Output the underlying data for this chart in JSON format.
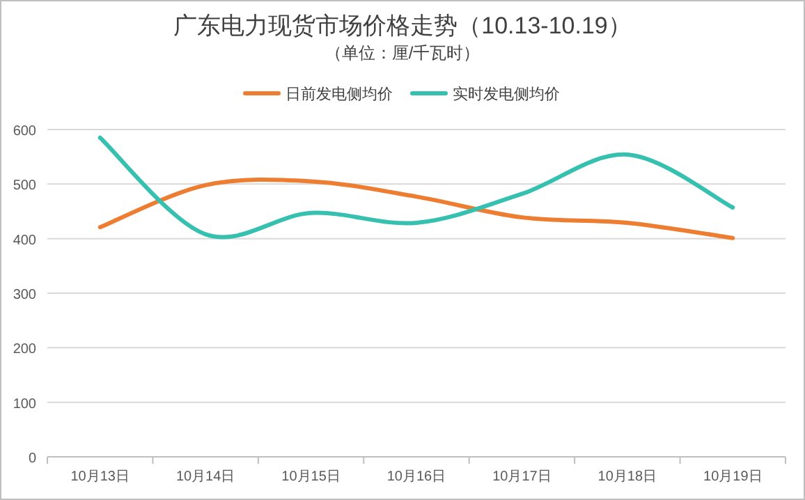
{
  "chart_data": {
    "type": "line",
    "title": "广东电力现货市场价格走势（10.13-10.19）",
    "subtitle": "（单位：厘/千瓦时）",
    "categories": [
      "10月13日",
      "10月14日",
      "10月15日",
      "10月16日",
      "10月17日",
      "10月18日",
      "10月19日"
    ],
    "series": [
      {
        "name": "日前发电侧均价",
        "color": "#ed7d31",
        "values": [
          421,
          498,
          505,
          477,
          439,
          429,
          401
        ]
      },
      {
        "name": "实时发电侧均价",
        "color": "#36c0b0",
        "values": [
          585,
          408,
          447,
          429,
          482,
          554,
          457
        ]
      }
    ],
    "ylim": [
      0,
      600
    ],
    "yticks": [
      0,
      100,
      200,
      300,
      400,
      500,
      600
    ],
    "grid": "y",
    "legend": "top",
    "marker": "none",
    "line_style": "solid"
  }
}
